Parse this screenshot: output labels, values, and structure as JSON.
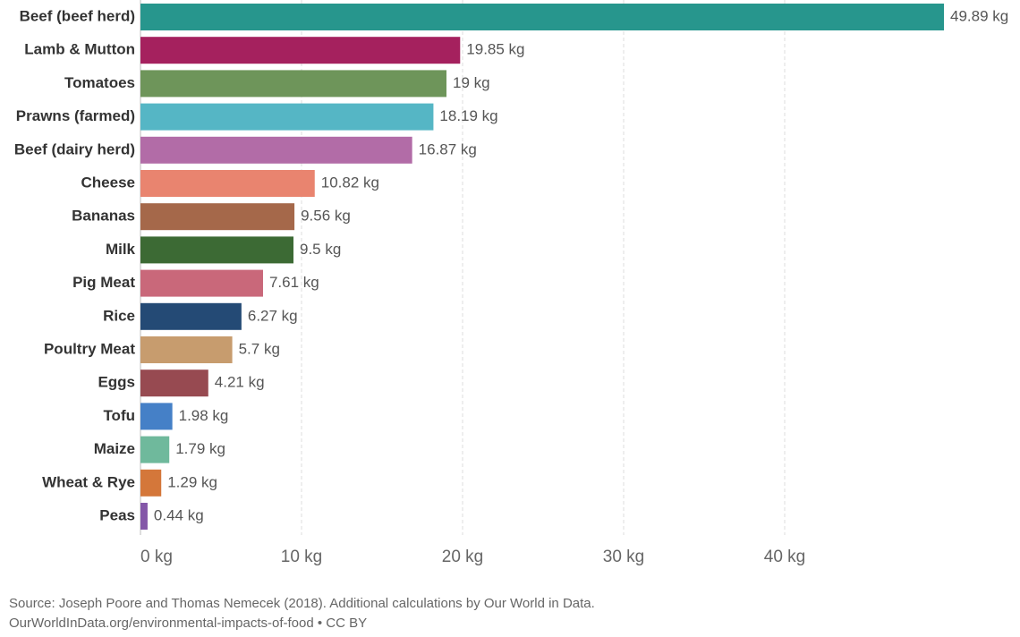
{
  "chart_data": {
    "type": "hbar",
    "categories": [
      "Beef (beef herd)",
      "Lamb & Mutton",
      "Tomatoes",
      "Prawns (farmed)",
      "Beef (dairy herd)",
      "Cheese",
      "Bananas",
      "Milk",
      "Pig Meat",
      "Rice",
      "Poultry Meat",
      "Eggs",
      "Tofu",
      "Maize",
      "Wheat & Rye",
      "Peas"
    ],
    "values": [
      49.89,
      19.85,
      19,
      18.19,
      16.87,
      10.82,
      9.56,
      9.5,
      7.61,
      6.27,
      5.7,
      4.21,
      1.98,
      1.79,
      1.29,
      0.44
    ],
    "value_labels": [
      "49.89 kg",
      "19.85 kg",
      "19 kg",
      "18.19 kg",
      "16.87 kg",
      "10.82 kg",
      "9.56 kg",
      "9.5 kg",
      "7.61 kg",
      "6.27 kg",
      "5.7 kg",
      "4.21 kg",
      "1.98 kg",
      "1.79 kg",
      "1.29 kg",
      "0.44 kg"
    ],
    "colors": [
      "#27968d",
      "#a5215e",
      "#6e955a",
      "#55b6c5",
      "#b26ca7",
      "#e9846f",
      "#a5684a",
      "#3c6a34",
      "#c9687a",
      "#244a75",
      "#c79c6e",
      "#974a51",
      "#4580c7",
      "#6fb99c",
      "#d4773a",
      "#8457a8"
    ],
    "xlim": [
      0,
      50
    ],
    "xticks": [
      {
        "value": 0,
        "label": "0 kg"
      },
      {
        "value": 10,
        "label": "10 kg"
      },
      {
        "value": 20,
        "label": "20 kg"
      },
      {
        "value": 30,
        "label": "30 kg"
      },
      {
        "value": 40,
        "label": "40 kg"
      }
    ],
    "grid": true,
    "source": [
      "Source: Joseph Poore and Thomas Nemecek (2018). Additional calculations by Our World in Data.",
      "OurWorldInData.org/environmental-impacts-of-food • CC BY"
    ]
  }
}
